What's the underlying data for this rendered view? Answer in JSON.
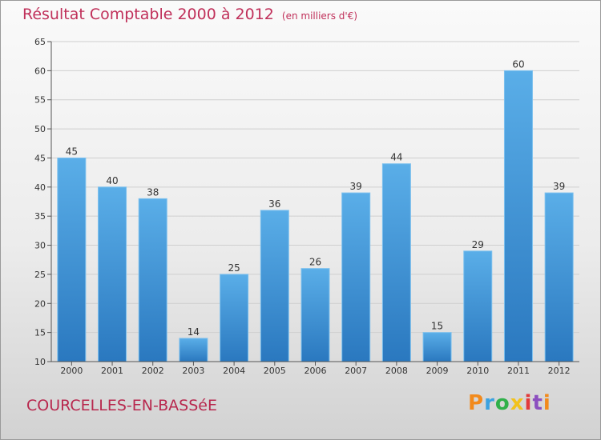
{
  "title": "Résultat Comptable 2000 à 2012",
  "unit_note": "(en milliers d'€)",
  "commune": "COURCELLES-EN-BASSéE",
  "logo": {
    "letters": [
      "P",
      "r",
      "o",
      "x",
      "i",
      "t",
      "i"
    ],
    "colors": [
      "#f28a1c",
      "#3ba2e0",
      "#2fb04a",
      "#f2c21c",
      "#e23a3a",
      "#8c4fbf",
      "#f28a1c"
    ]
  },
  "colors": {
    "bar_light": "#5aaee8",
    "bar_dark": "#2a78bf",
    "title": "#c0305a"
  },
  "chart_data": {
    "type": "bar",
    "title": "Résultat Comptable 2000 à 2012",
    "subtitle": "(en milliers d'€)",
    "categories": [
      "2000",
      "2001",
      "2002",
      "2003",
      "2004",
      "2005",
      "2006",
      "2007",
      "2008",
      "2009",
      "2010",
      "2011",
      "2012"
    ],
    "values": [
      45,
      40,
      38,
      14,
      25,
      36,
      26,
      39,
      44,
      15,
      29,
      60,
      39
    ],
    "ylim": [
      10,
      65
    ],
    "yticks": [
      10,
      15,
      20,
      25,
      30,
      35,
      40,
      45,
      50,
      55,
      60,
      65
    ],
    "grid": true,
    "data_labels": true
  }
}
